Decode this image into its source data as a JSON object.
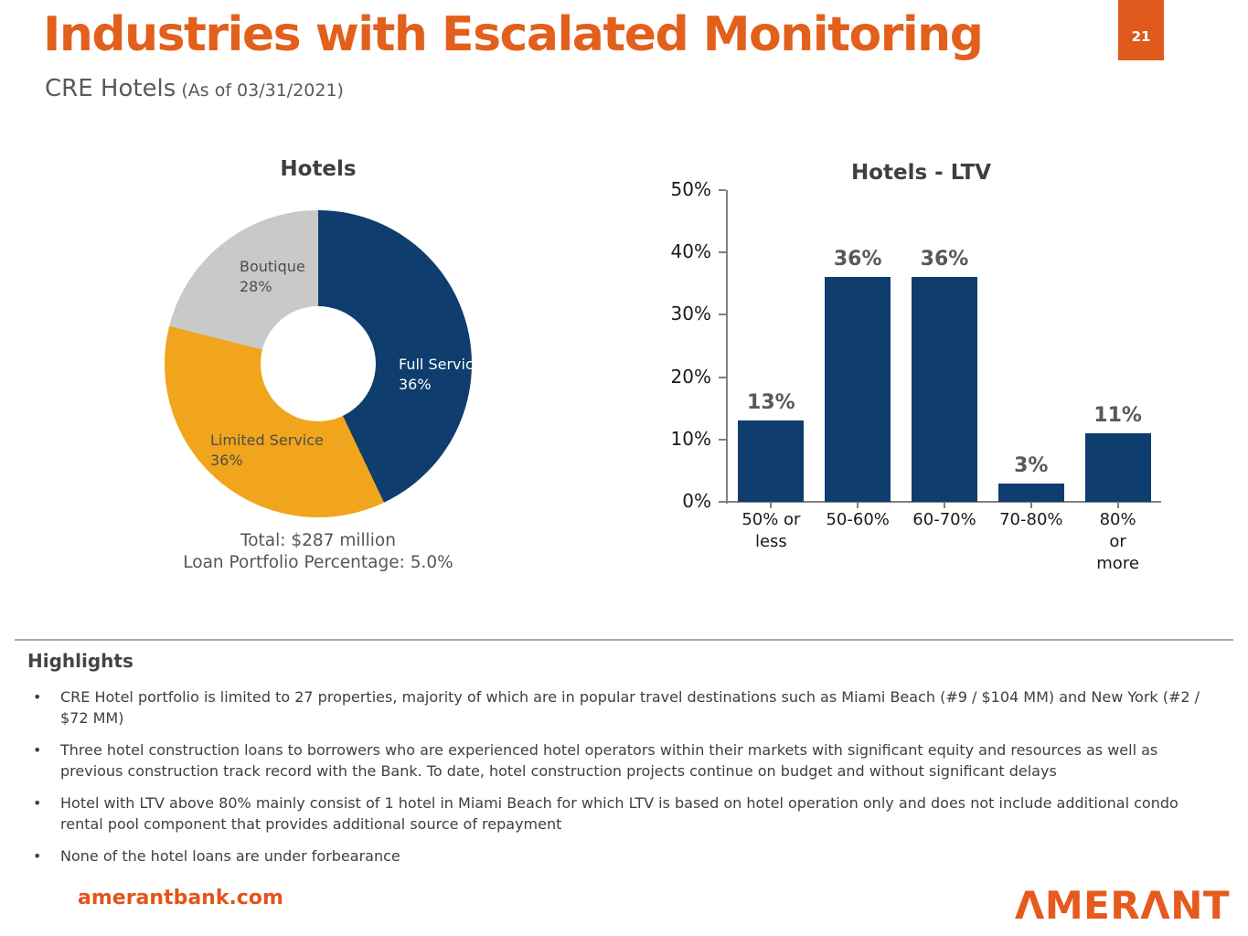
{
  "slide": {
    "title": "Industries with Escalated Monitoring",
    "subtitle": "CRE Hotels",
    "subtitle_note": "(As of 03/31/2021)",
    "page_number": "21"
  },
  "colors": {
    "brand_orange": "#E0591D",
    "navy": "#0E3D6E",
    "amber": "#F0A51C",
    "slice_gray": "#C9C9C9",
    "axis_gray": "#808080"
  },
  "chart_data": [
    {
      "type": "pie",
      "title": "Hotels",
      "donut": true,
      "start_angle_deg": 25,
      "slices": [
        {
          "label": "Full Service",
          "value": 36,
          "pct": "36%",
          "color": "#0E3D6E"
        },
        {
          "label": "Limited Service",
          "value": 36,
          "pct": "36%",
          "color": "#F0A51C"
        },
        {
          "label": "Boutique",
          "value": 28,
          "pct": "28%",
          "color": "#C9C9C9"
        }
      ],
      "footnote_line1": "Total: $287 million",
      "footnote_line2": "Loan Portfolio Percentage: 5.0%"
    },
    {
      "type": "bar",
      "title": "Hotels - LTV",
      "categories": [
        "50% or\nless",
        "50-60%",
        "60-70%",
        "70-80%",
        "80% or\nmore"
      ],
      "values": [
        13,
        36,
        36,
        3,
        11
      ],
      "value_labels": [
        "13%",
        "36%",
        "36%",
        "3%",
        "11%"
      ],
      "ylabel": "",
      "xlabel": "",
      "ylim": [
        0,
        50
      ],
      "yticks": [
        "0%",
        "10%",
        "20%",
        "30%",
        "40%",
        "50%"
      ],
      "grid": false,
      "legend": false,
      "bar_color": "#0E3D6E"
    }
  ],
  "highlights": {
    "heading": "Highlights",
    "bullets": [
      "CRE Hotel portfolio is limited to 27 properties, majority of which are in popular travel destinations such as Miami Beach (#9 / $104 MM) and New York (#2 / $72 MM)",
      "Three hotel construction loans to borrowers who are experienced hotel operators within their markets with significant equity and resources as well as previous construction track record with the Bank. To date, hotel construction projects continue on budget and without significant delays",
      "Hotel with LTV above 80% mainly consist of 1 hotel in Miami Beach for which LTV is based on hotel operation only and does not include additional condo rental pool component that provides additional source of repayment",
      "None of the hotel loans are under forbearance"
    ]
  },
  "footer": {
    "website": "amerantbank.com",
    "logo_text": "ΛMERΛNT"
  }
}
